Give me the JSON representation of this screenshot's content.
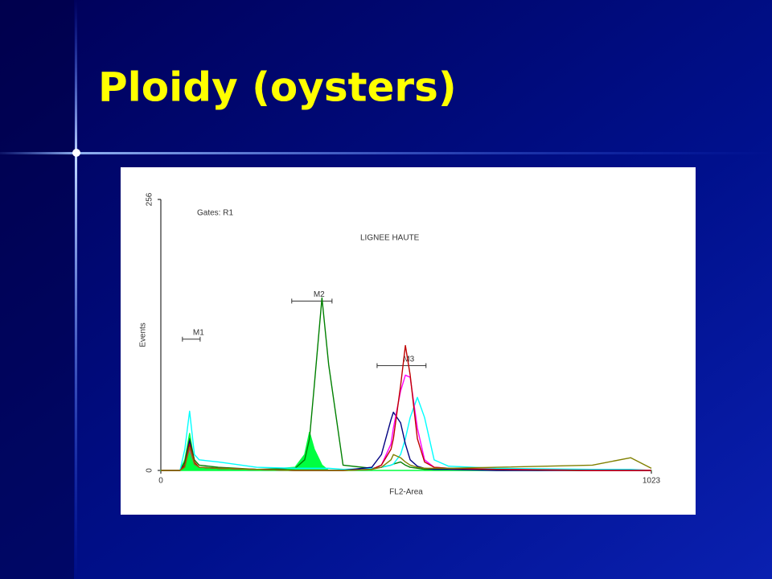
{
  "slide_title": "Ploidy (oysters)",
  "chart_data": {
    "type": "line",
    "x_label": "FL2-Area",
    "y_label": "Events",
    "annotations": [
      "Gates: R1",
      "LIGNEE HAUTE"
    ],
    "markers": [
      {
        "label": "M1",
        "range": [
          45,
          82
        ],
        "level": 124
      },
      {
        "label": "M2",
        "range": [
          273,
          357
        ],
        "level": 160
      },
      {
        "label": "M3",
        "range": [
          451,
          553
        ],
        "level": 99
      }
    ],
    "xlim": [
      0,
      1023
    ],
    "xticks": [
      0,
      1023
    ],
    "ylim": [
      0,
      256
    ],
    "yticks": [
      0,
      256
    ],
    "x": [
      0,
      40,
      50,
      60,
      70,
      80,
      120,
      200,
      280,
      300,
      310,
      320,
      336,
      350,
      380,
      440,
      460,
      480,
      485,
      500,
      510,
      520,
      535,
      550,
      570,
      600,
      700,
      900,
      980,
      1023
    ],
    "series": [
      {
        "color": "#00ff40",
        "fill": true,
        "values": [
          0,
          0,
          10,
          35,
          8,
          2,
          1,
          0,
          3,
          15,
          36,
          20,
          5,
          0,
          0,
          0,
          0,
          0,
          0,
          0,
          0,
          0,
          0,
          0,
          0,
          0,
          0,
          0,
          0,
          0
        ]
      },
      {
        "color": "#008000",
        "values": [
          0,
          0,
          8,
          30,
          10,
          5,
          3,
          1,
          2,
          10,
          30,
          80,
          163,
          100,
          5,
          2,
          3,
          5,
          6,
          8,
          5,
          3,
          2,
          1,
          1,
          1,
          1,
          0,
          0,
          0
        ]
      },
      {
        "color": "#00ffff",
        "values": [
          0,
          0,
          20,
          56,
          15,
          10,
          8,
          3,
          2,
          2,
          2,
          2,
          2,
          2,
          1,
          2,
          3,
          5,
          6,
          15,
          30,
          50,
          69,
          50,
          10,
          4,
          2,
          1,
          1,
          0
        ]
      },
      {
        "color": "#000080",
        "values": [
          0,
          0,
          5,
          28,
          6,
          3,
          2,
          1,
          0,
          0,
          0,
          0,
          0,
          0,
          0,
          3,
          15,
          48,
          55,
          45,
          25,
          10,
          4,
          2,
          1,
          1,
          0,
          0,
          0,
          0
        ]
      },
      {
        "color": "#ff00ff",
        "values": [
          0,
          0,
          5,
          20,
          6,
          3,
          2,
          1,
          0,
          0,
          0,
          0,
          0,
          0,
          0,
          1,
          5,
          25,
          40,
          75,
          90,
          88,
          40,
          10,
          3,
          2,
          1,
          0,
          0,
          0
        ]
      },
      {
        "color": "#c00000",
        "values": [
          0,
          0,
          5,
          25,
          8,
          3,
          2,
          1,
          0,
          0,
          0,
          0,
          0,
          0,
          0,
          1,
          5,
          20,
          30,
          80,
          118,
          90,
          30,
          8,
          3,
          2,
          1,
          0,
          0,
          0
        ]
      },
      {
        "color": "#808000",
        "values": [
          0,
          0,
          3,
          22,
          6,
          3,
          2,
          1,
          0,
          0,
          0,
          0,
          0,
          0,
          0,
          1,
          3,
          10,
          15,
          12,
          8,
          5,
          3,
          2,
          2,
          2,
          3,
          5,
          12,
          2
        ]
      }
    ]
  }
}
